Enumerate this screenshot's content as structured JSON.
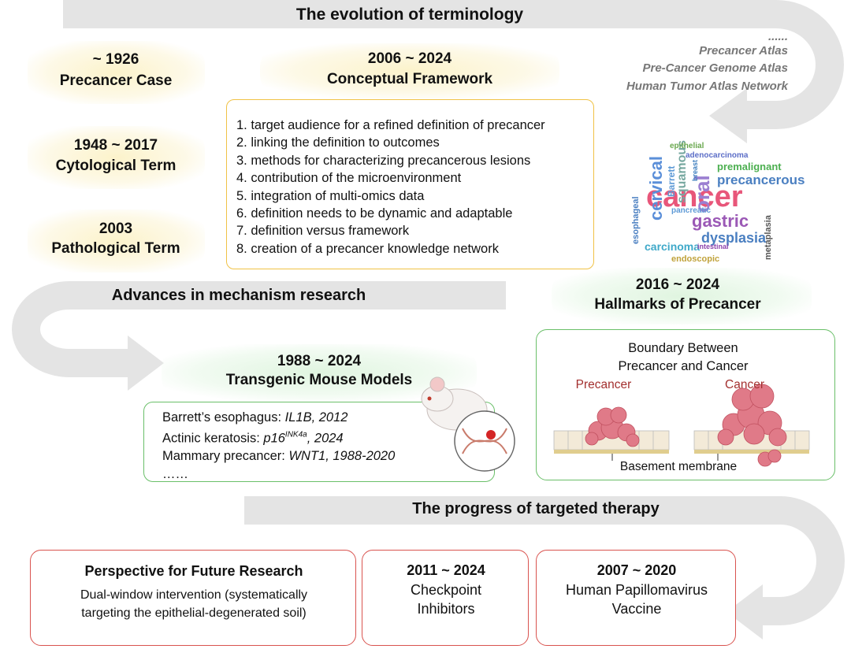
{
  "sections": {
    "terminology": "The evolution of terminology",
    "mechanism": "Advances in mechanism research",
    "therapy": "The progress of targeted therapy"
  },
  "timeline": [
    {
      "period": "~ 1926",
      "label": "Precancer Case"
    },
    {
      "period": "1948 ~ 2017",
      "label": "Cytological Term"
    },
    {
      "period": "2003",
      "label": "Pathological Term"
    }
  ],
  "framework": {
    "period": "2006 ~ 2024",
    "label": "Conceptual Framework",
    "items": [
      "1. target audience for a refined definition of precancer",
      "2. linking the definition to outcomes",
      "3. methods for characterizing precancerous lesions",
      "4. contribution of the microenvironment",
      "5. integration of multi-omics data",
      "6. definition needs to be dynamic and adaptable",
      "7. definition versus framework",
      "8. creation of a precancer knowledge network"
    ]
  },
  "atlases": {
    "ellipsis": "......",
    "items": [
      "Precancer Atlas",
      "Pre-Cancer Genome Atlas",
      "Human Tumor Atlas Network"
    ]
  },
  "word_cloud": [
    "cancer",
    "gastric",
    "precancerous",
    "cervical",
    "dysplasia",
    "carcinoma",
    "squamous",
    "Barrett",
    "adenocarcinoma",
    "premalignant",
    "esophageal",
    "endoscopic",
    "intestinal",
    "epithelial",
    "oral",
    "breast",
    "pancreatic",
    "metaplasia"
  ],
  "hallmarks": {
    "period": "2016 ~ 2024",
    "label": "Hallmarks of Precancer",
    "heading": [
      "Boundary Between",
      "Precancer and Cancer"
    ],
    "precancer": "Precancer",
    "cancer": "Cancer",
    "membrane": "Basement membrane"
  },
  "mouse_models": {
    "period": "1988 ~ 2024",
    "label": "Transgenic Mouse Models",
    "items": [
      {
        "label": "Barrett’s esophagus:",
        "detail": "IL1B, 2012"
      },
      {
        "label": "Actinic keratosis:",
        "gene": "p16",
        "superscript": "INK4a",
        "detail": ", 2024"
      },
      {
        "label": "Mammary precancer:",
        "detail": "WNT1, 1988-2020"
      }
    ],
    "more": "……"
  },
  "therapy": [
    {
      "title": "Perspective for Future Research",
      "lines": [
        "Dual-window intervention (systematically",
        "targeting the epithelial-degenerated soil)"
      ]
    },
    {
      "period": "2011 ~ 2024",
      "lines": [
        "Checkpoint",
        "Inhibitors"
      ]
    },
    {
      "period": "2007 ~ 2020",
      "lines": [
        "Human Papillomavirus",
        "Vaccine"
      ]
    }
  ]
}
